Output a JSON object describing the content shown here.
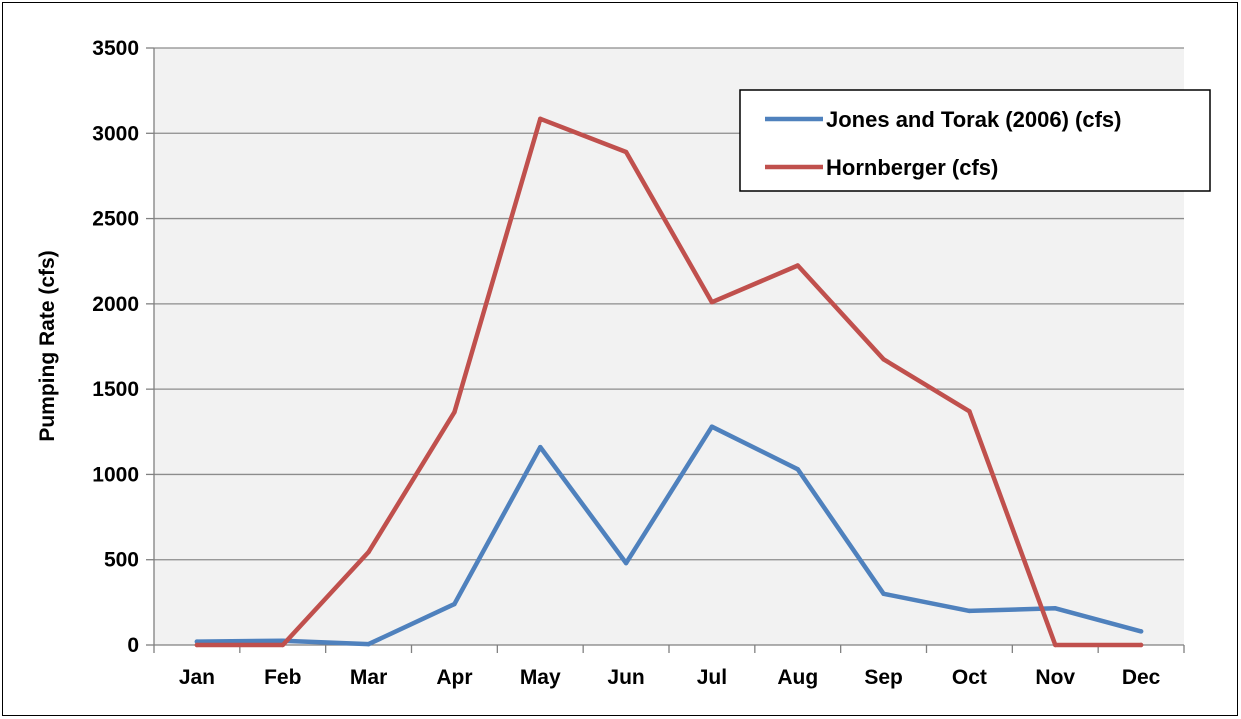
{
  "chart_data": {
    "type": "line",
    "title": "",
    "xlabel": "",
    "ylabel": "Pumping Rate (cfs)",
    "categories": [
      "Jan",
      "Feb",
      "Mar",
      "Apr",
      "May",
      "Jun",
      "Jul",
      "Aug",
      "Sep",
      "Oct",
      "Nov",
      "Dec"
    ],
    "ylim": [
      0,
      3500
    ],
    "yticks": [
      0,
      500,
      1000,
      1500,
      2000,
      2500,
      3000,
      3500
    ],
    "grid": true,
    "legend_position": "top-right",
    "plot_background": "#f2f2f2",
    "series": [
      {
        "name": "Jones and Torak (2006) (cfs)",
        "color": "#4f81bd",
        "values": [
          20,
          25,
          5,
          240,
          1160,
          480,
          1280,
          1030,
          300,
          200,
          215,
          80
        ]
      },
      {
        "name": "Hornberger (cfs)",
        "color": "#c0504d",
        "values": [
          0,
          0,
          545,
          1365,
          3085,
          2890,
          2010,
          2225,
          1675,
          1370,
          0,
          0
        ]
      }
    ]
  }
}
